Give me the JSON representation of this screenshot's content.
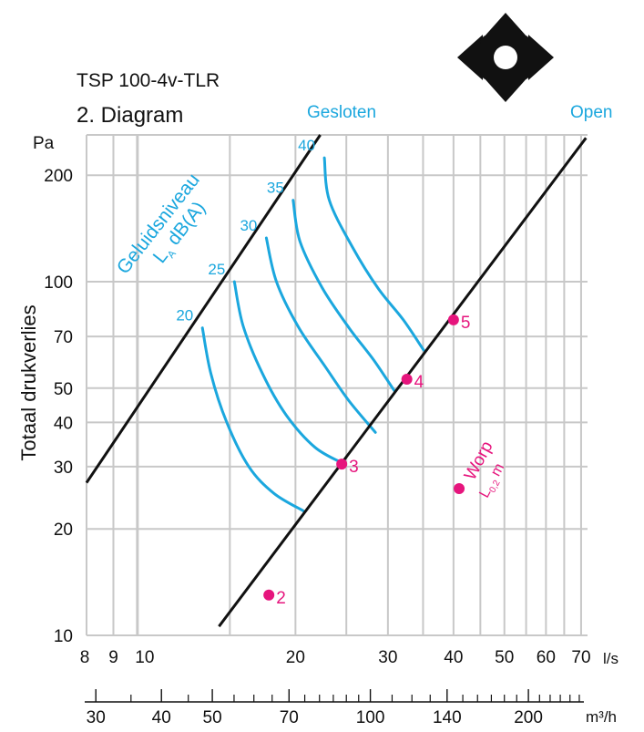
{
  "header": {
    "model": "TSP 100-4v-TLR",
    "diagram_title": "2. Diagram",
    "legend_closed": "Gesloten",
    "legend_open": "Open",
    "direction_icon": "four-way-arrows-icon"
  },
  "colors": {
    "grid": "#c8c8c8",
    "axis": "#111111",
    "line": "#111111",
    "curve": "#1ba7de",
    "point": "#e6157d"
  },
  "chart_data": {
    "type": "line",
    "x_scale": "log",
    "y_scale": "log",
    "xlim": [
      8,
      72
    ],
    "ylim": [
      10,
      260
    ],
    "grid": true,
    "xlabel": "l/s",
    "ylabel": "Totaal drukverlies",
    "y_unit": "Pa",
    "x_ticks": [
      8,
      9,
      10,
      20,
      30,
      40,
      50,
      60,
      70
    ],
    "x_tick_labels": [
      "8",
      "9",
      "10",
      "20",
      "30",
      "40",
      "50",
      "60",
      "70"
    ],
    "x_grid": [
      9,
      10,
      15,
      20,
      25,
      30,
      35,
      40,
      45,
      50,
      55,
      60,
      65,
      70
    ],
    "y_ticks": [
      10,
      20,
      30,
      40,
      50,
      70,
      100,
      200
    ],
    "y_tick_labels": [
      "10",
      "20",
      "30",
      "40",
      "50",
      "70",
      "100",
      "200"
    ],
    "y_grid": [
      10,
      20,
      30,
      40,
      50,
      70,
      100,
      200
    ],
    "secondary_axis": {
      "unit": "m³/h",
      "ticks": [
        30,
        40,
        50,
        70,
        100,
        140,
        200
      ],
      "tick_labels": [
        "30",
        "40",
        "50",
        "70",
        "100",
        "140",
        "200"
      ],
      "minor_ticks": [
        35,
        45,
        55,
        60,
        65,
        75,
        80,
        85,
        90,
        95,
        110,
        120,
        130,
        150,
        160,
        170,
        180,
        190,
        210,
        220,
        230,
        240,
        250
      ]
    },
    "series": [
      {
        "name": "Gesloten",
        "points": [
          [
            8,
            27
          ],
          [
            22.3,
            260
          ]
        ]
      },
      {
        "name": "Open",
        "points": [
          [
            14.3,
            10.6
          ],
          [
            71.5,
            255
          ]
        ]
      }
    ],
    "sound_label": {
      "main": "Geluidsniveau",
      "sub_L": "L",
      "sub_A": "A",
      "unit": "dB(A)"
    },
    "sound_curves": [
      {
        "label": "20",
        "points": [
          [
            13.3,
            74
          ],
          [
            13.8,
            55
          ],
          [
            14.8,
            40
          ],
          [
            16.3,
            30
          ],
          [
            18.2,
            25.2
          ],
          [
            20.7,
            22.5
          ]
        ]
      },
      {
        "label": "25",
        "points": [
          [
            15.3,
            100
          ],
          [
            15.9,
            75
          ],
          [
            17.3,
            55
          ],
          [
            19.2,
            42
          ],
          [
            21.8,
            34
          ],
          [
            24.8,
            30.5
          ]
        ]
      },
      {
        "label": "30",
        "points": [
          [
            17.6,
            133
          ],
          [
            18.4,
            100
          ],
          [
            20.2,
            75
          ],
          [
            22.7,
            58
          ],
          [
            25.3,
            46
          ],
          [
            28.4,
            37.5
          ]
        ]
      },
      {
        "label": "35",
        "points": [
          [
            19.8,
            170
          ],
          [
            20.4,
            130
          ],
          [
            22.5,
            96
          ],
          [
            25.3,
            74
          ],
          [
            28.2,
            60
          ],
          [
            30.9,
            49
          ]
        ]
      },
      {
        "label": "40",
        "points": [
          [
            22.7,
            224
          ],
          [
            23.2,
            170
          ],
          [
            25.7,
            125
          ],
          [
            28.7,
            96
          ],
          [
            32.1,
            78
          ],
          [
            35.1,
            64
          ]
        ]
      }
    ],
    "points": [
      {
        "label": "2",
        "x": 17.8,
        "y": 13
      },
      {
        "label": "3",
        "x": 24.5,
        "y": 30.5
      },
      {
        "label": "4",
        "x": 32.6,
        "y": 53
      },
      {
        "label": "5",
        "x": 40.0,
        "y": 78
      }
    ],
    "throw_marker": {
      "label": "Worp",
      "sub_L": "L",
      "sub": "0,2",
      "unit": "m",
      "x": 41.0,
      "y": 26
    }
  }
}
